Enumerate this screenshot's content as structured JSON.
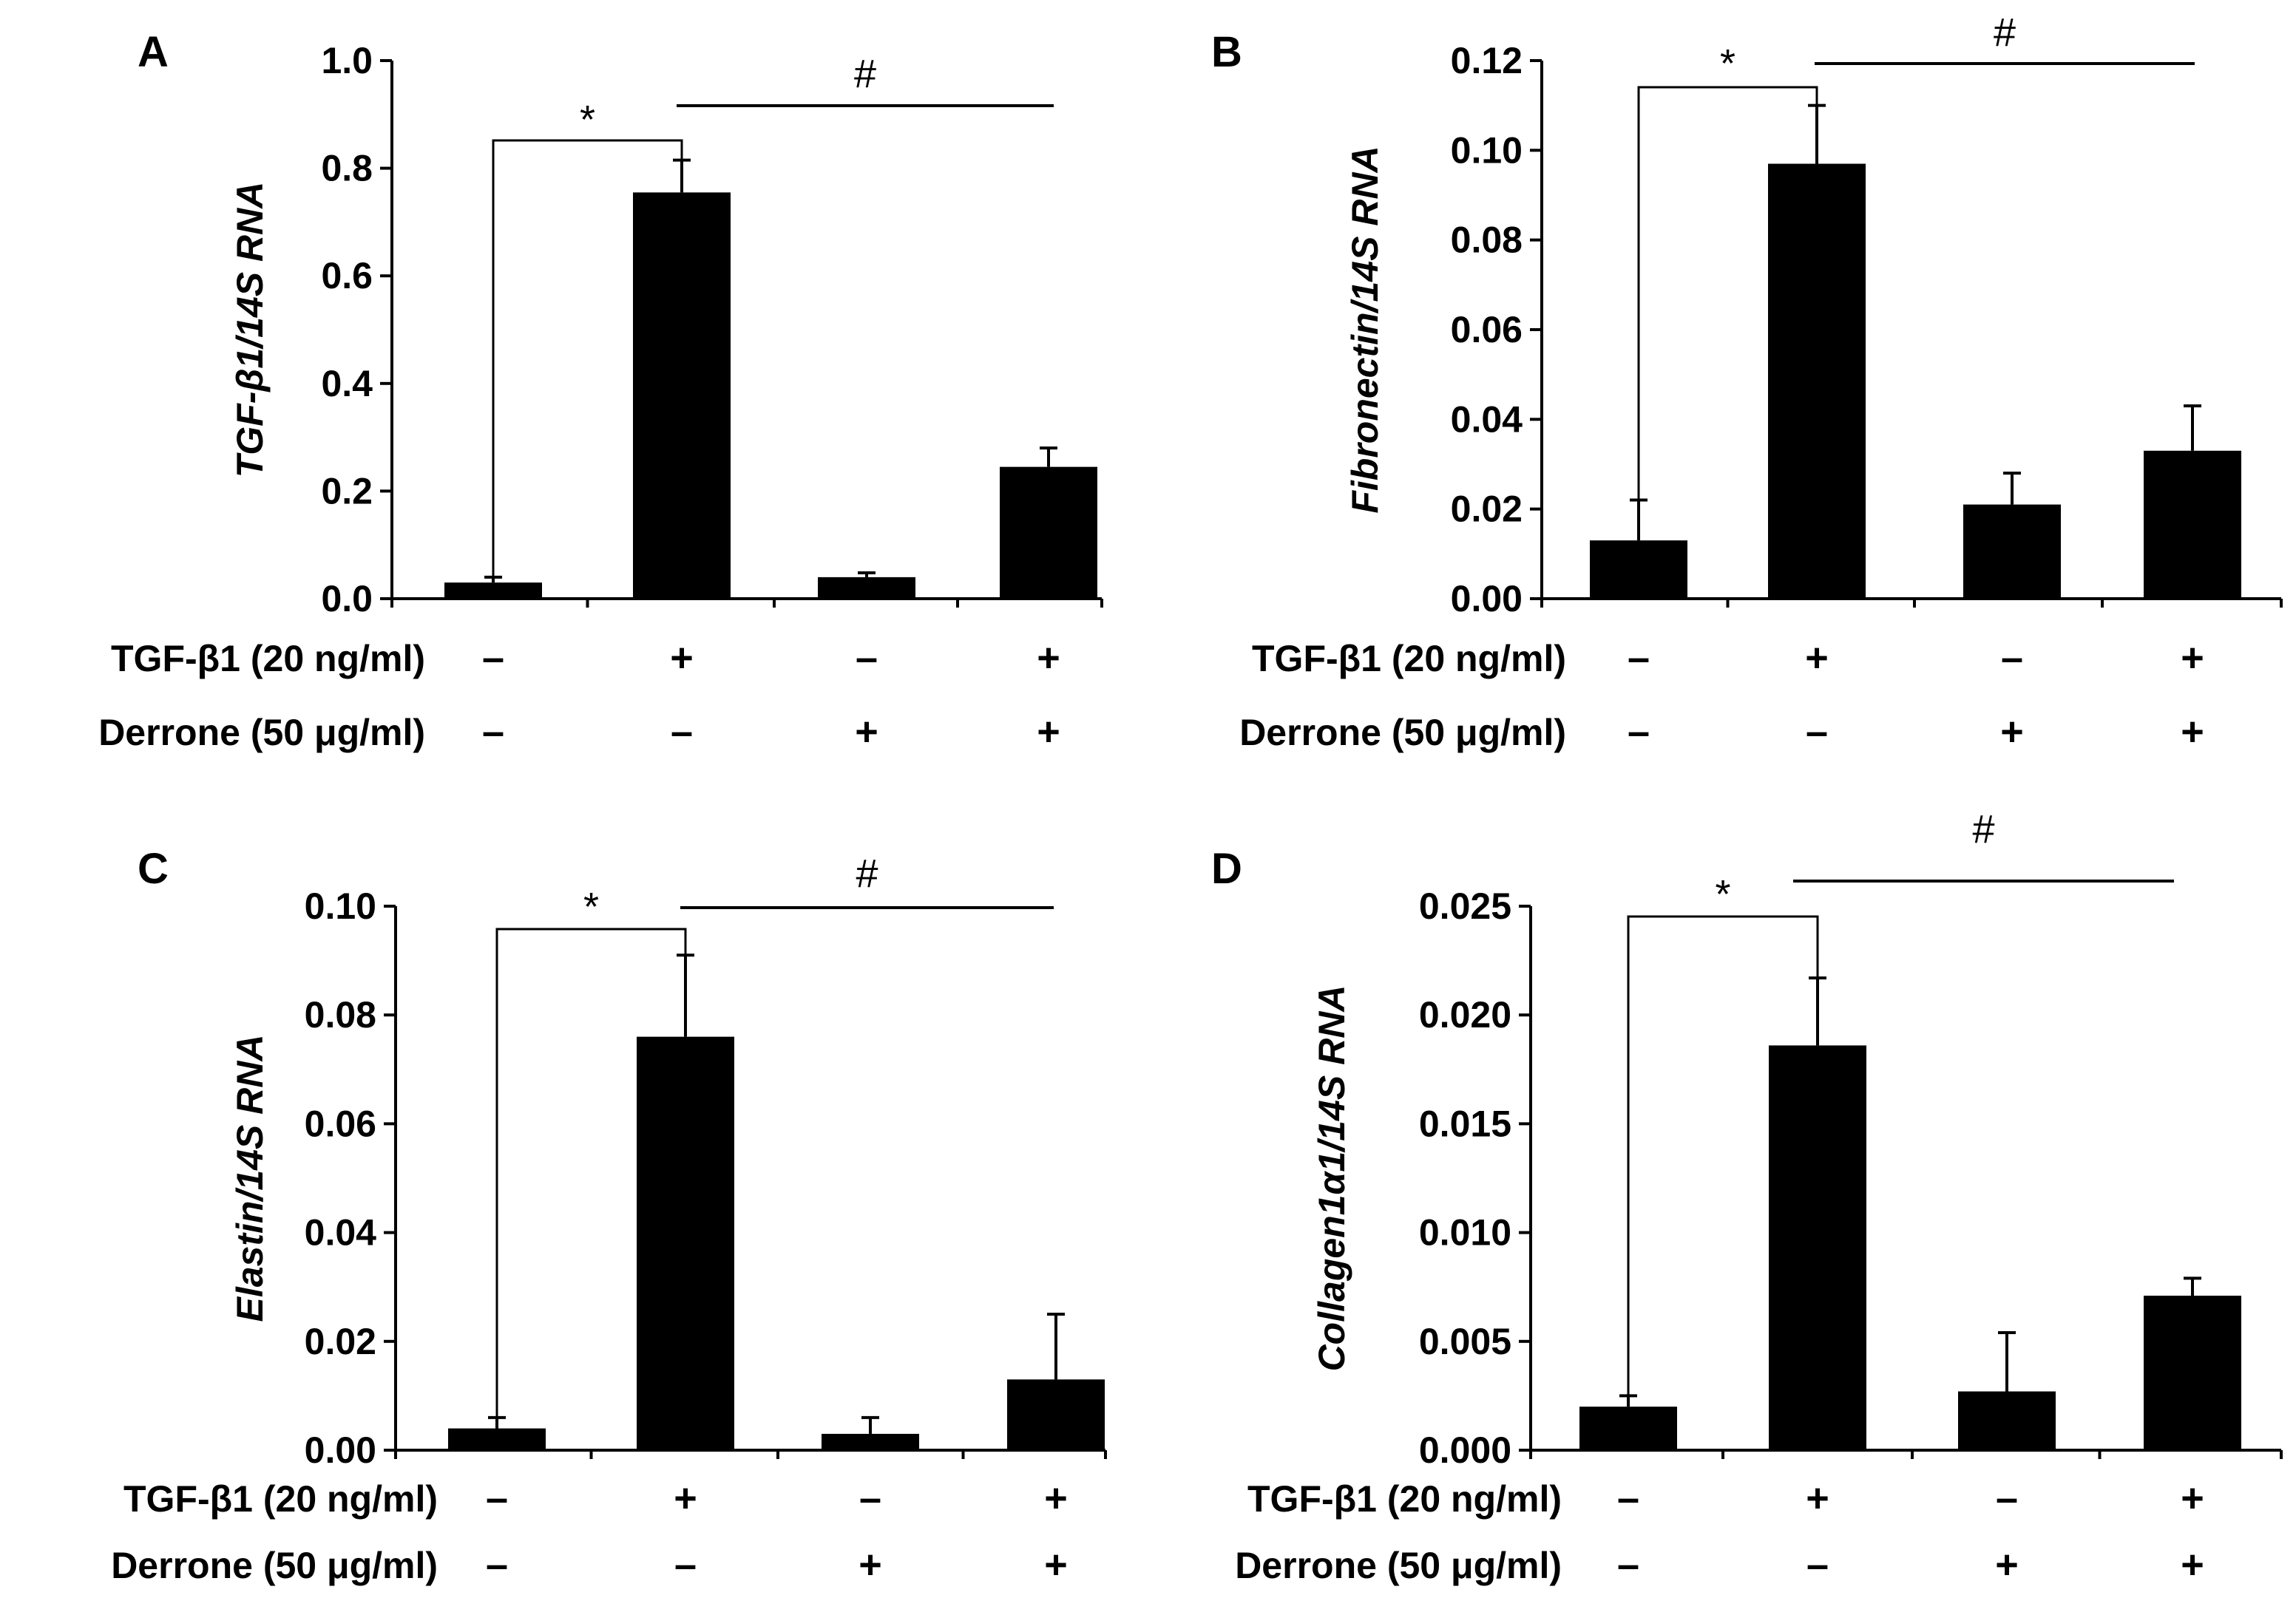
{
  "chart_data": [
    {
      "panel": "A",
      "type": "bar",
      "ylabel": "TGF-β1/14S RNA",
      "ylim": [
        0,
        1.0
      ],
      "yticks": [
        "0.0",
        "0.2",
        "0.4",
        "0.6",
        "0.8",
        "1.0"
      ],
      "values": [
        0.03,
        0.755,
        0.04,
        0.245
      ],
      "errors": [
        0.01,
        0.06,
        0.008,
        0.035
      ],
      "tgf": [
        "–",
        "+",
        "–",
        "+"
      ],
      "derrone": [
        "–",
        "–",
        "+",
        "+"
      ],
      "sig_star": "*",
      "sig_hash": "#"
    },
    {
      "panel": "B",
      "type": "bar",
      "ylabel": "Fibronectin/14S RNA",
      "ylim": [
        0,
        0.12
      ],
      "yticks": [
        "0.00",
        "0.02",
        "0.04",
        "0.06",
        "0.08",
        "0.10",
        "0.12"
      ],
      "values": [
        0.013,
        0.097,
        0.021,
        0.033
      ],
      "errors": [
        0.009,
        0.013,
        0.007,
        0.01
      ],
      "tgf": [
        "–",
        "+",
        "–",
        "+"
      ],
      "derrone": [
        "–",
        "–",
        "+",
        "+"
      ],
      "sig_star": "*",
      "sig_hash": "#"
    },
    {
      "panel": "C",
      "type": "bar",
      "ylabel": "Elastin/14S RNA",
      "ylim": [
        0,
        0.1
      ],
      "yticks": [
        "0.00",
        "0.02",
        "0.04",
        "0.06",
        "0.08",
        "0.10"
      ],
      "values": [
        0.004,
        0.076,
        0.003,
        0.013
      ],
      "errors": [
        0.002,
        0.015,
        0.003,
        0.012
      ],
      "tgf": [
        "–",
        "+",
        "–",
        "+"
      ],
      "derrone": [
        "–",
        "–",
        "+",
        "+"
      ],
      "sig_star": "*",
      "sig_hash": "#"
    },
    {
      "panel": "D",
      "type": "bar",
      "ylabel": "Collagen1α1/14S RNA",
      "ylim": [
        0,
        0.025
      ],
      "yticks": [
        "0.000",
        "0.005",
        "0.010",
        "0.015",
        "0.020",
        "0.025"
      ],
      "values": [
        0.002,
        0.0186,
        0.0027,
        0.0071
      ],
      "errors": [
        0.0005,
        0.0031,
        0.0027,
        0.0008
      ],
      "tgf": [
        "–",
        "+",
        "–",
        "+"
      ],
      "derrone": [
        "–",
        "–",
        "+",
        "+"
      ],
      "sig_star": "*",
      "sig_hash": "#"
    }
  ],
  "row_labels": {
    "tgf": "TGF-β1 (20 ng/ml)",
    "derrone": "Derrone (50 μg/ml)"
  }
}
